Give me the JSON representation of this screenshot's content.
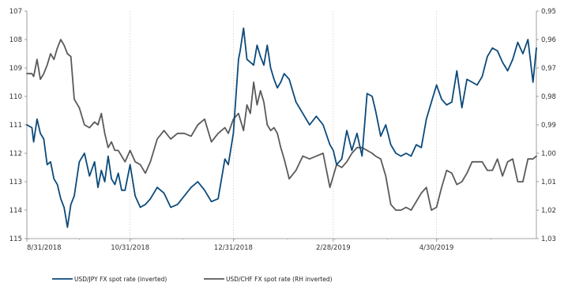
{
  "chart_data": {
    "type": "line",
    "title": "",
    "x_axis": {
      "tick_labels": [
        "8/31/2018",
        "10/31/2018",
        "12/31/2018",
        "2/28/2019",
        "4/30/2019"
      ],
      "start": "8/31/2018",
      "end": "6/28/2019"
    },
    "y_left": {
      "label": "",
      "min": 107,
      "max": 115,
      "inverted": true,
      "ticks": [
        "107",
        "108",
        "109",
        "110",
        "111",
        "112",
        "113",
        "114",
        "115"
      ]
    },
    "y_right": {
      "label": "",
      "min": 0.95,
      "max": 1.03,
      "inverted": true,
      "ticks": [
        "0,95",
        "0,96",
        "0,97",
        "0,98",
        "0,99",
        "1,00",
        "1,01",
        "1,02",
        "1,03"
      ]
    },
    "grid": {
      "vertical": true,
      "horizontal": false
    },
    "legend_position": "bottom-left",
    "series": [
      {
        "name": "USD/JPY FX spot rate (inverted)",
        "axis": "left",
        "color": "#0b4a7b",
        "x": [
          "2018-08-31",
          "2018-09-03",
          "2018-09-04",
          "2018-09-06",
          "2018-09-08",
          "2018-09-10",
          "2018-09-12",
          "2018-09-14",
          "2018-09-16",
          "2018-09-18",
          "2018-09-20",
          "2018-09-22",
          "2018-09-24",
          "2018-09-26",
          "2018-09-28",
          "2018-10-01",
          "2018-10-04",
          "2018-10-07",
          "2018-10-10",
          "2018-10-12",
          "2018-10-14",
          "2018-10-16",
          "2018-10-18",
          "2018-10-20",
          "2018-10-22",
          "2018-10-24",
          "2018-10-26",
          "2018-10-28",
          "2018-10-31",
          "2018-11-03",
          "2018-11-06",
          "2018-11-09",
          "2018-11-12",
          "2018-11-16",
          "2018-11-20",
          "2018-11-24",
          "2018-11-28",
          "2018-12-02",
          "2018-12-06",
          "2018-12-10",
          "2018-12-14",
          "2018-12-18",
          "2018-12-22",
          "2018-12-26",
          "2018-12-28",
          "2018-12-31",
          "2019-01-03",
          "2019-01-04",
          "2019-01-06",
          "2019-01-08",
          "2019-01-10",
          "2019-01-12",
          "2019-01-14",
          "2019-01-16",
          "2019-01-18",
          "2019-01-20",
          "2019-01-22",
          "2019-01-24",
          "2019-01-26",
          "2019-01-28",
          "2019-01-30",
          "2019-02-02",
          "2019-02-06",
          "2019-02-10",
          "2019-02-14",
          "2019-02-18",
          "2019-02-22",
          "2019-02-26",
          "2019-02-28",
          "2019-03-02",
          "2019-03-05",
          "2019-03-08",
          "2019-03-11",
          "2019-03-14",
          "2019-03-17",
          "2019-03-20",
          "2019-03-23",
          "2019-03-25",
          "2019-03-28",
          "2019-03-31",
          "2019-04-03",
          "2019-04-06",
          "2019-04-09",
          "2019-04-12",
          "2019-04-15",
          "2019-04-18",
          "2019-04-21",
          "2019-04-24",
          "2019-04-27",
          "2019-04-30",
          "2019-05-03",
          "2019-05-06",
          "2019-05-09",
          "2019-05-12",
          "2019-05-15",
          "2019-05-18",
          "2019-05-21",
          "2019-05-24",
          "2019-05-27",
          "2019-05-30",
          "2019-06-02",
          "2019-06-05",
          "2019-06-08",
          "2019-06-11",
          "2019-06-14",
          "2019-06-17",
          "2019-06-20",
          "2019-06-23",
          "2019-06-26",
          "2019-06-28"
        ],
        "y": [
          111.0,
          111.1,
          111.6,
          110.8,
          111.3,
          111.5,
          112.4,
          112.3,
          112.9,
          113.1,
          113.6,
          113.9,
          114.6,
          113.8,
          113.5,
          112.3,
          112.0,
          112.8,
          112.3,
          113.2,
          112.6,
          113.0,
          112.1,
          112.9,
          113.1,
          112.7,
          113.3,
          113.3,
          112.4,
          113.5,
          113.9,
          113.8,
          113.6,
          113.2,
          113.4,
          113.9,
          113.8,
          113.5,
          113.2,
          113.0,
          113.3,
          113.7,
          113.6,
          112.2,
          112.4,
          111.3,
          108.7,
          108.4,
          107.6,
          108.7,
          108.8,
          108.9,
          108.2,
          108.6,
          108.9,
          108.2,
          109.0,
          109.4,
          109.7,
          109.5,
          109.2,
          109.4,
          110.2,
          110.6,
          111.0,
          110.7,
          111.0,
          111.7,
          111.9,
          112.4,
          112.2,
          111.2,
          111.9,
          111.3,
          112.1,
          109.9,
          110.0,
          110.5,
          111.4,
          111.0,
          111.7,
          112.0,
          112.1,
          112.0,
          112.1,
          111.7,
          111.8,
          110.8,
          110.2,
          109.6,
          110.1,
          110.3,
          110.2,
          109.1,
          110.4,
          109.4,
          109.5,
          109.6,
          109.3,
          108.6,
          108.3,
          108.4,
          108.8,
          109.1,
          108.7,
          108.1,
          108.5,
          108.0,
          109.5,
          108.3
        ]
      },
      {
        "name": "USD/CHF FX spot rate (RH inverted)",
        "axis": "right",
        "color": "#5a5a5a",
        "x": [
          "2018-08-31",
          "2018-09-03",
          "2018-09-04",
          "2018-09-06",
          "2018-09-08",
          "2018-09-10",
          "2018-09-12",
          "2018-09-14",
          "2018-09-16",
          "2018-09-18",
          "2018-09-20",
          "2018-09-22",
          "2018-09-24",
          "2018-09-26",
          "2018-09-28",
          "2018-10-01",
          "2018-10-04",
          "2018-10-07",
          "2018-10-10",
          "2018-10-12",
          "2018-10-14",
          "2018-10-16",
          "2018-10-18",
          "2018-10-20",
          "2018-10-22",
          "2018-10-24",
          "2018-10-26",
          "2018-10-28",
          "2018-10-31",
          "2018-11-03",
          "2018-11-06",
          "2018-11-09",
          "2018-11-12",
          "2018-11-16",
          "2018-11-20",
          "2018-11-24",
          "2018-11-28",
          "2018-12-02",
          "2018-12-06",
          "2018-12-10",
          "2018-12-14",
          "2018-12-18",
          "2018-12-22",
          "2018-12-26",
          "2018-12-28",
          "2018-12-31",
          "2019-01-03",
          "2019-01-04",
          "2019-01-06",
          "2019-01-08",
          "2019-01-10",
          "2019-01-12",
          "2019-01-14",
          "2019-01-16",
          "2019-01-18",
          "2019-01-20",
          "2019-01-22",
          "2019-01-24",
          "2019-01-26",
          "2019-01-28",
          "2019-01-30",
          "2019-02-02",
          "2019-02-06",
          "2019-02-10",
          "2019-02-14",
          "2019-02-18",
          "2019-02-22",
          "2019-02-26",
          "2019-02-28",
          "2019-03-02",
          "2019-03-05",
          "2019-03-08",
          "2019-03-11",
          "2019-03-14",
          "2019-03-17",
          "2019-03-20",
          "2019-03-23",
          "2019-03-25",
          "2019-03-28",
          "2019-03-31",
          "2019-04-03",
          "2019-04-06",
          "2019-04-09",
          "2019-04-12",
          "2019-04-15",
          "2019-04-18",
          "2019-04-21",
          "2019-04-24",
          "2019-04-27",
          "2019-04-30",
          "2019-05-03",
          "2019-05-06",
          "2019-05-09",
          "2019-05-12",
          "2019-05-15",
          "2019-05-18",
          "2019-05-21",
          "2019-05-24",
          "2019-05-27",
          "2019-05-30",
          "2019-06-02",
          "2019-06-05",
          "2019-06-08",
          "2019-06-11",
          "2019-06-14",
          "2019-06-17",
          "2019-06-20",
          "2019-06-23",
          "2019-06-26",
          "2019-06-28"
        ],
        "y": [
          0.972,
          0.972,
          0.973,
          0.967,
          0.974,
          0.972,
          0.969,
          0.965,
          0.967,
          0.963,
          0.96,
          0.962,
          0.965,
          0.966,
          0.981,
          0.984,
          0.99,
          0.991,
          0.989,
          0.99,
          0.986,
          0.993,
          0.998,
          0.996,
          0.999,
          0.999,
          1.001,
          1.003,
          0.999,
          1.003,
          1.004,
          1.007,
          1.003,
          0.995,
          0.992,
          0.995,
          0.993,
          0.993,
          0.994,
          0.99,
          0.988,
          0.996,
          0.993,
          0.991,
          0.993,
          0.988,
          0.986,
          0.988,
          0.992,
          0.983,
          0.986,
          0.975,
          0.983,
          0.978,
          0.982,
          0.99,
          0.992,
          0.991,
          0.993,
          0.998,
          1.002,
          1.009,
          1.006,
          1.001,
          1.002,
          1.001,
          1.0,
          1.012,
          1.008,
          1.004,
          1.005,
          1.003,
          1.0,
          0.998,
          0.998,
          0.999,
          1.0,
          1.001,
          1.002,
          1.008,
          1.018,
          1.02,
          1.02,
          1.019,
          1.02,
          1.017,
          1.014,
          1.012,
          1.02,
          1.019,
          1.012,
          1.006,
          1.007,
          1.011,
          1.01,
          1.007,
          1.003,
          1.003,
          1.003,
          1.006,
          1.006,
          1.002,
          1.008,
          1.003,
          1.002,
          1.01,
          1.01,
          1.002,
          1.002,
          1.001
        ]
      }
    ]
  }
}
